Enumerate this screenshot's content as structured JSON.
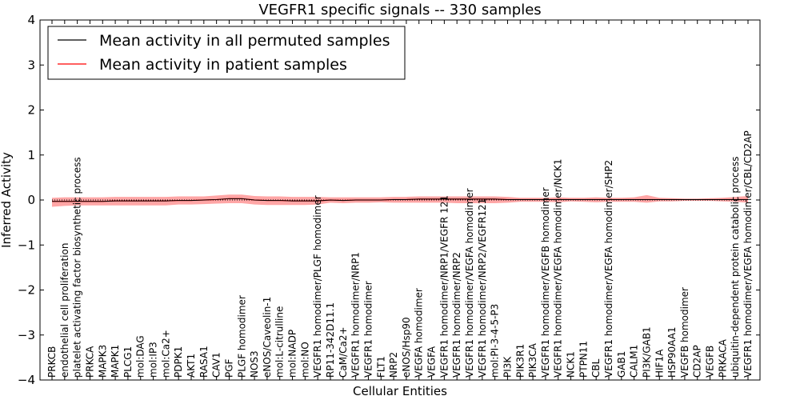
{
  "chart_data": {
    "type": "line",
    "title": "VEGFR1 specific signals -- 330 samples",
    "xlabel": "Cellular Entities",
    "ylabel": "Inferred Activity",
    "ylim": [
      -4,
      4
    ],
    "yticks": [
      "4",
      "3",
      "2",
      "1",
      "0",
      "−1",
      "−2",
      "−3",
      "−4"
    ],
    "grid": false,
    "legend_position": "top-left",
    "categories": [
      "PRKCB",
      "endothelial cell proliferation",
      "platelet activating factor biosynthetic process",
      "PRKCA",
      "MAPK3",
      "MAPK1",
      "PLCG1",
      "mol:DAG",
      "mol:IP3",
      "mol:Ca2+",
      "PDPK1",
      "AKT1",
      "RASA1",
      "CAV1",
      "PGF",
      "PLGF homodimer",
      "NOS3",
      "eNOS/Caveolin-1",
      "mol:L-citrulline",
      "mol:NADP",
      "mol:NO",
      "VEGFR1 homodimer/PLGF homodimer",
      "RP11-342D11.1",
      "CaM/Ca2+",
      "VEGFR1 homodimer/NRP1",
      "VEGFR1 homodimer",
      "FLT1",
      "NRP2",
      "eNOS/Hsp90",
      "VEGFA homodimer",
      "VEGFA",
      "VEGFR1 homodimer/NRP1/VEGFR 121",
      "VEGFR1 homodimer/NRP2",
      "VEGFR1 homodimer/VEGFA homodimer",
      "VEGFR1 homodimer/NRP2/VEGFR121",
      "mol:PI-3-4-5-P3",
      "PI3K",
      "PIK3R1",
      "PIK3CA",
      "VEGFR1 homodimer/VEGFB homodimer",
      "VEGFR1 homodimer/VEGFA homodimer/NCK1",
      "NCK1",
      "PTPN11",
      "CBL",
      "VEGFR1 homodimer/VEGFA homodimer/SHP2",
      "GAB1",
      "CALM1",
      "PI3K/GAB1",
      "HIF1A",
      "HSP90AA1",
      "VEGFB homodimer",
      "CD2AP",
      "VEGFB",
      "PRKACA",
      "ubiquitin-dependent protein catabolic process",
      "VEGFR1 homodimer/VEGFA homodimer/CBL/CD2AP"
    ],
    "series": [
      {
        "name": "Mean activity in all permuted samples",
        "color": "#000000",
        "style": "dotted",
        "values": [
          0,
          0,
          0,
          0,
          0,
          0,
          0,
          0,
          0,
          0,
          0,
          0,
          0,
          0,
          0,
          0,
          0,
          0,
          0,
          0,
          0,
          0,
          0,
          0,
          0,
          0,
          0,
          0,
          0,
          0,
          0,
          0,
          0,
          0,
          0,
          0,
          0,
          0,
          0,
          0,
          0,
          0,
          0,
          0,
          0,
          0,
          0,
          0,
          0,
          0,
          0,
          0,
          0,
          0,
          0,
          0
        ]
      },
      {
        "name": "Mean activity in patient samples",
        "color": "#ff0000",
        "style": "solid",
        "values": [
          -0.03,
          -0.03,
          -0.03,
          -0.03,
          -0.03,
          -0.02,
          -0.02,
          -0.02,
          -0.02,
          -0.02,
          -0.01,
          -0.01,
          0.0,
          0.01,
          0.03,
          0.03,
          0.0,
          -0.01,
          -0.01,
          -0.02,
          -0.02,
          -0.02,
          0.0,
          -0.01,
          0.0,
          0.0,
          0.0,
          0.01,
          0.01,
          0.02,
          0.02,
          0.02,
          0.02,
          0.02,
          0.02,
          0.02,
          0.01,
          0.01,
          0.01,
          0.01,
          0.01,
          0.01,
          0.01,
          0.01,
          0.01,
          0.01,
          0.01,
          0.01,
          0.01,
          0.01,
          0.01,
          0.01,
          0.01,
          0.01,
          0.01,
          0.01
        ],
        "band_low": [
          -0.15,
          -0.13,
          -0.12,
          -0.12,
          -0.12,
          -0.12,
          -0.12,
          -0.12,
          -0.12,
          -0.12,
          -0.1,
          -0.1,
          -0.09,
          -0.08,
          -0.07,
          -0.07,
          -0.1,
          -0.11,
          -0.11,
          -0.11,
          -0.11,
          -0.1,
          -0.06,
          -0.07,
          -0.06,
          -0.06,
          -0.05,
          -0.06,
          -0.06,
          -0.06,
          -0.06,
          -0.06,
          -0.07,
          -0.07,
          -0.07,
          -0.07,
          -0.06,
          -0.04,
          -0.04,
          -0.04,
          -0.05,
          -0.03,
          -0.04,
          -0.05,
          -0.04,
          -0.04,
          -0.04,
          -0.06,
          -0.03,
          -0.03,
          -0.02,
          -0.02,
          -0.02,
          -0.03,
          -0.04,
          -0.06
        ],
        "band_high": [
          0.05,
          0.06,
          0.06,
          0.06,
          0.06,
          0.07,
          0.07,
          0.07,
          0.07,
          0.07,
          0.08,
          0.08,
          0.08,
          0.1,
          0.12,
          0.12,
          0.09,
          0.08,
          0.08,
          0.07,
          0.07,
          0.07,
          0.06,
          0.06,
          0.06,
          0.06,
          0.06,
          0.07,
          0.07,
          0.08,
          0.08,
          0.08,
          0.08,
          0.08,
          0.08,
          0.08,
          0.07,
          0.05,
          0.05,
          0.05,
          0.06,
          0.05,
          0.05,
          0.06,
          0.05,
          0.05,
          0.06,
          0.11,
          0.05,
          0.04,
          0.03,
          0.03,
          0.04,
          0.05,
          0.07,
          0.09
        ]
      }
    ]
  }
}
